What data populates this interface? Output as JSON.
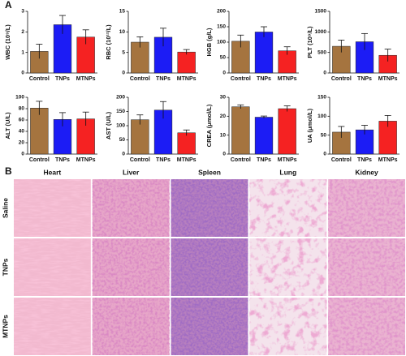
{
  "panel_labels": [
    "A",
    "B"
  ],
  "chart_data": [
    {
      "type": "bar",
      "ylabel": "WBC (10⁹/L)",
      "categories": [
        "Control",
        "TNPs",
        "MTNPs"
      ],
      "values": [
        1.05,
        2.35,
        1.75
      ],
      "errors": [
        0.35,
        0.45,
        0.35
      ],
      "colors": [
        "#a5743f",
        "#1c1cf5",
        "#f52222"
      ],
      "ylim": [
        0,
        3
      ],
      "yticks": [
        0,
        1,
        2,
        3
      ]
    },
    {
      "type": "bar",
      "ylabel": "RBC (10¹²/L)",
      "categories": [
        "Control",
        "TNPs",
        "MTNPs"
      ],
      "values": [
        7.5,
        8.7,
        5.1
      ],
      "errors": [
        1.3,
        2.2,
        0.6
      ],
      "colors": [
        "#a5743f",
        "#1c1cf5",
        "#f52222"
      ],
      "ylim": [
        0,
        15
      ],
      "yticks": [
        0,
        5,
        10,
        15
      ]
    },
    {
      "type": "bar",
      "ylabel": "HGB (g/L)",
      "categories": [
        "Control",
        "TNPs",
        "MTNPs"
      ],
      "values": [
        103,
        133,
        72
      ],
      "errors": [
        20,
        17,
        13
      ],
      "colors": [
        "#a5743f",
        "#1c1cf5",
        "#f52222"
      ],
      "ylim": [
        0,
        200
      ],
      "yticks": [
        0,
        50,
        100,
        150,
        200
      ]
    },
    {
      "type": "bar",
      "ylabel": "PLT (10⁹/L)",
      "categories": [
        "Control",
        "TNPs",
        "MTNPs"
      ],
      "values": [
        650,
        760,
        430
      ],
      "errors": [
        150,
        200,
        150
      ],
      "colors": [
        "#a5743f",
        "#1c1cf5",
        "#f52222"
      ],
      "ylim": [
        0,
        1500
      ],
      "yticks": [
        0,
        500,
        1000,
        1500
      ]
    },
    {
      "type": "bar",
      "ylabel": "ALT (U/L)",
      "categories": [
        "Control",
        "TNPs",
        "MTNPs"
      ],
      "values": [
        81,
        61,
        62
      ],
      "errors": [
        12,
        12,
        12
      ],
      "colors": [
        "#a5743f",
        "#1c1cf5",
        "#f52222"
      ],
      "ylim": [
        0,
        100
      ],
      "yticks": [
        0,
        20,
        40,
        60,
        80,
        100
      ]
    },
    {
      "type": "bar",
      "ylabel": "AST (U/L)",
      "categories": [
        "Control",
        "TNPs",
        "MTNPs"
      ],
      "values": [
        121,
        155,
        75
      ],
      "errors": [
        17,
        30,
        10
      ],
      "colors": [
        "#a5743f",
        "#1c1cf5",
        "#f52222"
      ],
      "ylim": [
        0,
        200
      ],
      "yticks": [
        0,
        50,
        100,
        150,
        200
      ]
    },
    {
      "type": "bar",
      "ylabel": "CREA (μmol/L)",
      "categories": [
        "Control",
        "TNPs",
        "MTNPs"
      ],
      "values": [
        25,
        19.5,
        24
      ],
      "errors": [
        1,
        0.6,
        1.5
      ],
      "colors": [
        "#a5743f",
        "#1c1cf5",
        "#f52222"
      ],
      "ylim": [
        0,
        30
      ],
      "yticks": [
        0,
        10,
        20,
        30
      ]
    },
    {
      "type": "bar",
      "ylabel": "UA (μmol/L)",
      "categories": [
        "Control",
        "TNPs",
        "MTNPs"
      ],
      "values": [
        58,
        64,
        87
      ],
      "errors": [
        15,
        12,
        15
      ],
      "colors": [
        "#a5743f",
        "#1c1cf5",
        "#f52222"
      ],
      "ylim": [
        0,
        150
      ],
      "yticks": [
        0,
        50,
        100,
        150
      ]
    }
  ],
  "histology": {
    "columns": [
      "Heart",
      "Liver",
      "Spleen",
      "Lung",
      "Kidney"
    ],
    "rows": [
      "Saline",
      "TNPs",
      "MTNPs"
    ]
  }
}
